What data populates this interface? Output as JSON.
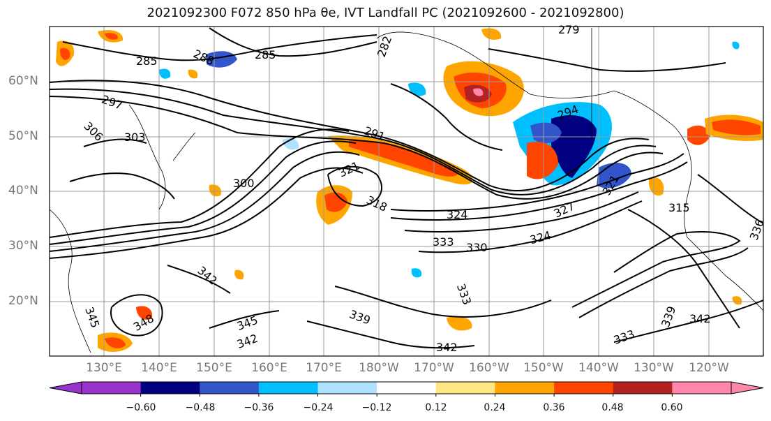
{
  "title": "2021092300 F072 850 hPa θe, IVT Landfall PC (2021092600 - 2021092800)",
  "lat_labels": [
    "60°N",
    "50°N",
    "40°N",
    "30°N",
    "20°N"
  ],
  "lon_labels": [
    "130°E",
    "140°E",
    "150°E",
    "160°E",
    "170°E",
    "180°W",
    "170°W",
    "160°W",
    "150°W",
    "140°W",
    "130°W",
    "120°W"
  ],
  "contour_labels": [
    "285",
    "288",
    "285",
    "282",
    "279",
    "297",
    "306",
    "303",
    "291",
    "294",
    "300",
    "321",
    "324",
    "327",
    "321",
    "315",
    "318",
    "333",
    "330",
    "324",
    "336",
    "342",
    "333",
    "339",
    "345",
    "348",
    "345",
    "342",
    "339",
    "342",
    "333",
    "342"
  ],
  "colorbar": {
    "ticks": [
      "−0.60",
      "−0.48",
      "−0.36",
      "−0.24",
      "−0.12",
      "0.12",
      "0.24",
      "0.36",
      "0.48",
      "0.60"
    ],
    "colors": [
      "#9933cc",
      "#000080",
      "#3355cc",
      "#00bfff",
      "#aee2ff",
      "#ffffff",
      "#ffe680",
      "#ffa500",
      "#ff4500",
      "#b22222",
      "#ff88aa"
    ]
  }
}
